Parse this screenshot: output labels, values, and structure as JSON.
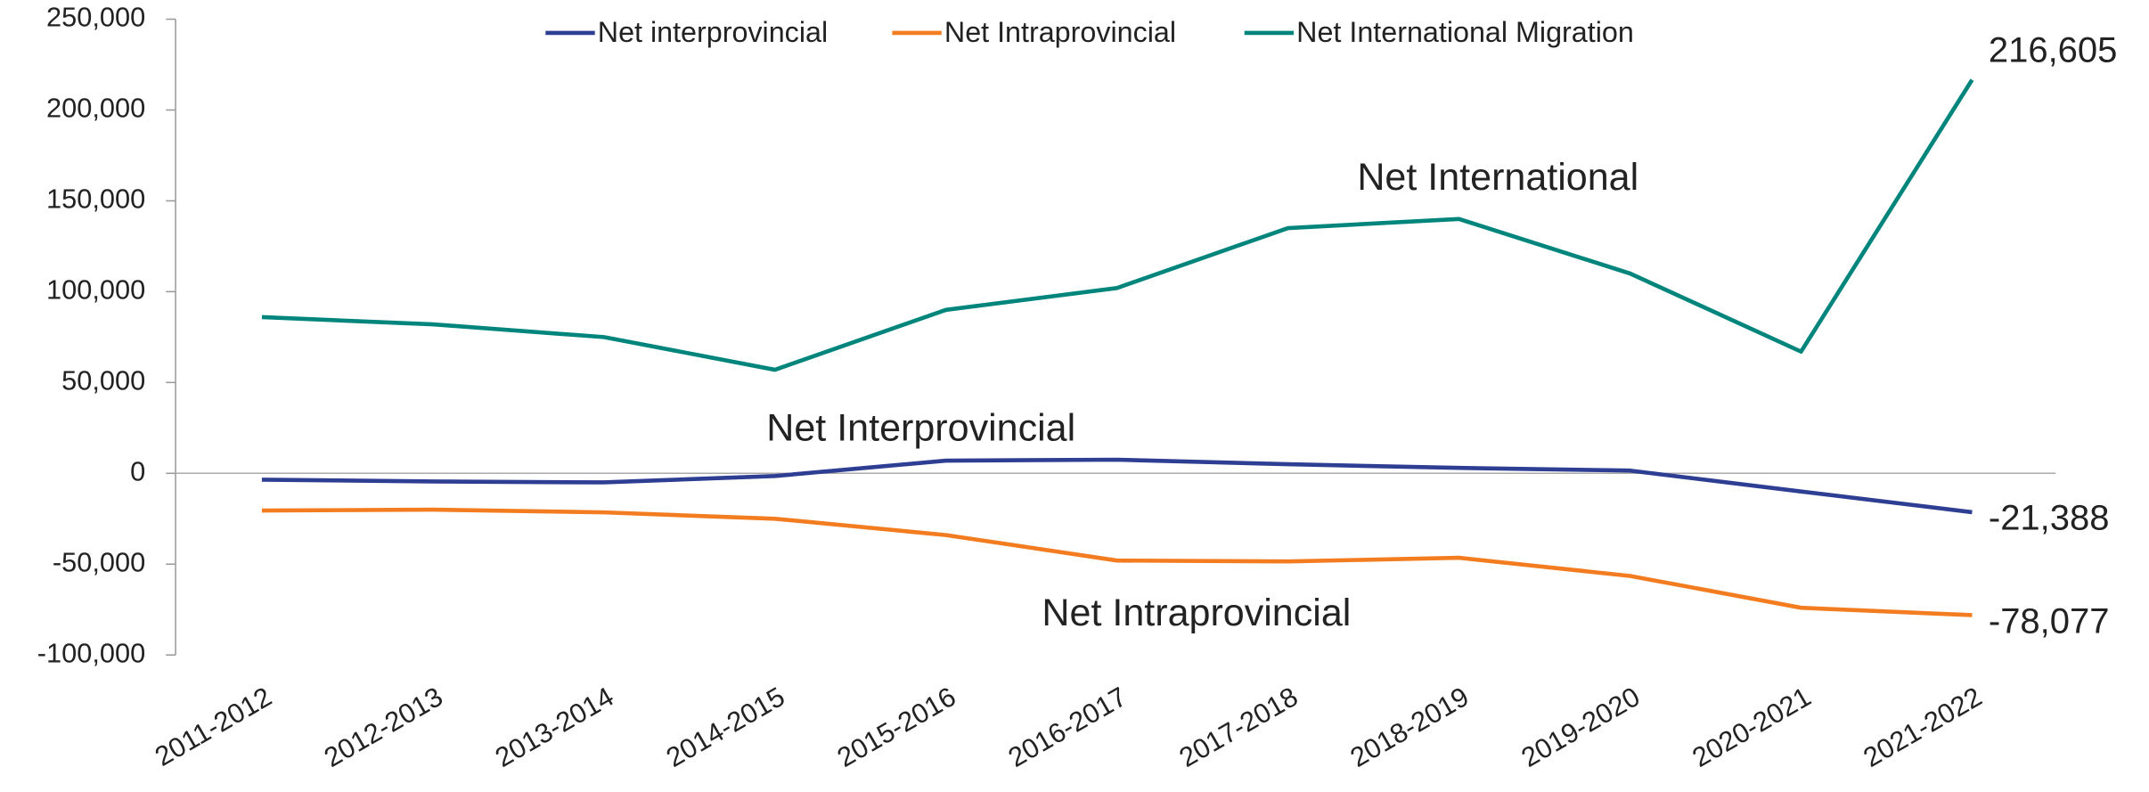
{
  "chart_data": {
    "type": "line",
    "categories": [
      "2011-2012",
      "2012-2013",
      "2013-2014",
      "2014-2015",
      "2015-2016",
      "2016-2017",
      "2017-2018",
      "2018-2019",
      "2019-2020",
      "2020-2021",
      "2021-2022"
    ],
    "series": [
      {
        "name": "Net interprovincial",
        "color": "#2e3f93",
        "values": [
          -3500,
          -4500,
          -5000,
          -1500,
          7000,
          7500,
          5000,
          3000,
          1500,
          -10000,
          -21388
        ],
        "value_labels": [
          null,
          null,
          null,
          null,
          null,
          null,
          null,
          null,
          null,
          null,
          "-21,388"
        ]
      },
      {
        "name": "Net Intraprovincial",
        "color": "#f47c20",
        "values": [
          -20500,
          -20000,
          -21500,
          -25000,
          -34000,
          -48000,
          -48500,
          -46500,
          -56500,
          -74000,
          -78077
        ],
        "value_labels": [
          null,
          null,
          null,
          null,
          null,
          null,
          null,
          null,
          null,
          null,
          "-78,077"
        ]
      },
      {
        "name": "Net International Migration",
        "color": "#00857c",
        "values": [
          86000,
          82000,
          75000,
          57000,
          90000,
          102000,
          135000,
          140000,
          110000,
          67000,
          216605
        ],
        "value_labels": [
          null,
          null,
          null,
          null,
          null,
          null,
          null,
          null,
          null,
          null,
          "216,605"
        ]
      }
    ],
    "annotations": [
      "Net Interprovincial",
      "Net Intraprovincial",
      "Net International"
    ],
    "ylim": [
      -100000,
      250000
    ],
    "yticks": [
      {
        "value": -100000,
        "label": "-100,000"
      },
      {
        "value": -50000,
        "label": "-50,000"
      },
      0,
      {
        "value": 50000,
        "label": "50,000"
      },
      {
        "value": 100000,
        "label": "100,000"
      },
      {
        "value": 150000,
        "label": "150,000"
      },
      {
        "value": 200000,
        "label": "200,000"
      },
      {
        "value": 250000,
        "label": "250,000"
      }
    ],
    "legend": "top",
    "grid": false
  }
}
